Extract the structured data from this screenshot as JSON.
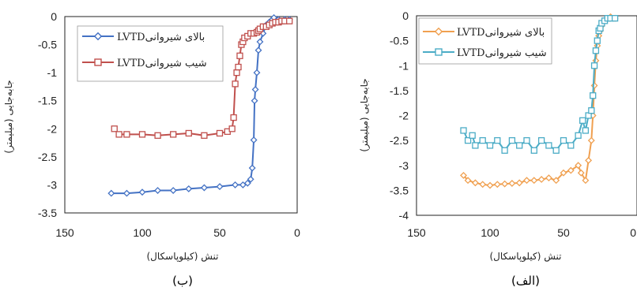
{
  "chart_data": [
    {
      "type": "line",
      "caption": "(ب)",
      "xlabel": "تنش (کیلوپاسکال)",
      "ylabel": "جابه‌جایی (میلیمتر)",
      "xlim": [
        150,
        0
      ],
      "ylim": [
        -3.5,
        0
      ],
      "xticks": [
        "150",
        "100",
        "50",
        "0"
      ],
      "yticks": [
        "0",
        "-0.5",
        "-1",
        "-1.5",
        "-2",
        "-2.5",
        "-3",
        "-3.5"
      ],
      "legend_position": "top-left",
      "series": [
        {
          "name": "LVTDبالای شیروانی",
          "color": "#4472c4",
          "marker": "diamond",
          "x": [
            120,
            110,
            100,
            90,
            80,
            70,
            60,
            50,
            40,
            35,
            32,
            30,
            29,
            28,
            27.5,
            27,
            26,
            25,
            24,
            22,
            20,
            18,
            16,
            15,
            12,
            10,
            8,
            5
          ],
          "y": [
            -3.15,
            -3.15,
            -3.13,
            -3.1,
            -3.1,
            -3.07,
            -3.05,
            -3.03,
            -3.0,
            -3.0,
            -2.97,
            -2.9,
            -2.7,
            -2.2,
            -1.5,
            -1.3,
            -1.0,
            -0.6,
            -0.45,
            -0.3,
            -0.15,
            -0.1,
            -0.05,
            -0.02,
            -0.05,
            -0.08,
            -0.05,
            -0.05
          ]
        },
        {
          "name": "LVTDشیب شیروانی",
          "color": "#c0504d",
          "marker": "square",
          "x": [
            118,
            115,
            110,
            100,
            90,
            80,
            70,
            60,
            50,
            45,
            42,
            41,
            40,
            39,
            38,
            37,
            36,
            35,
            34,
            32,
            30,
            28,
            26,
            25,
            24,
            22,
            20,
            18,
            16,
            14,
            12,
            10,
            8,
            5
          ],
          "y": [
            -2.0,
            -2.1,
            -2.1,
            -2.1,
            -2.12,
            -2.1,
            -2.08,
            -2.12,
            -2.08,
            -2.05,
            -2.0,
            -1.8,
            -1.2,
            -1.0,
            -0.9,
            -0.7,
            -0.5,
            -0.45,
            -0.38,
            -0.35,
            -0.3,
            -0.3,
            -0.28,
            -0.25,
            -0.22,
            -0.18,
            -0.18,
            -0.15,
            -0.12,
            -0.1,
            -0.1,
            -0.08,
            -0.08,
            -0.08
          ]
        }
      ]
    },
    {
      "type": "line",
      "caption": "(الف)",
      "xlabel": "تنش (کیلوپاسکال)",
      "ylabel": "جابه‌جایی (میلیمتر)",
      "xlim": [
        150,
        0
      ],
      "ylim": [
        -4,
        0
      ],
      "xticks": [
        "150",
        "100",
        "50",
        "0"
      ],
      "yticks": [
        "0",
        "-0.5",
        "-1",
        "-1.5",
        "-2",
        "-2.5",
        "-3",
        "-3.5",
        "-4"
      ],
      "legend_position": "top-left",
      "series": [
        {
          "name": "LVTDبالای شیروانی",
          "color": "#f0a050",
          "marker": "diamond",
          "x": [
            118,
            115,
            110,
            105,
            100,
            95,
            90,
            85,
            80,
            75,
            70,
            65,
            60,
            55,
            50,
            45,
            40,
            38,
            35,
            33,
            31,
            30,
            29,
            28,
            27,
            26,
            25,
            24,
            22,
            20,
            18,
            15
          ],
          "y": [
            -3.2,
            -3.3,
            -3.35,
            -3.38,
            -3.4,
            -3.38,
            -3.37,
            -3.36,
            -3.35,
            -3.3,
            -3.3,
            -3.28,
            -3.25,
            -3.3,
            -3.15,
            -3.1,
            -3.0,
            -3.15,
            -3.3,
            -2.9,
            -2.5,
            -2.0,
            -1.4,
            -0.9,
            -0.6,
            -0.4,
            -0.3,
            -0.2,
            -0.1,
            -0.05,
            -0.02,
            -0.05
          ]
        },
        {
          "name": "LVTDشیب شیروانی",
          "color": "#4bacc6",
          "marker": "square",
          "x": [
            118,
            115,
            112,
            110,
            105,
            100,
            95,
            90,
            85,
            80,
            75,
            70,
            65,
            60,
            55,
            50,
            45,
            40,
            37,
            35,
            33,
            31,
            30,
            29,
            28,
            27,
            26,
            25,
            24,
            22,
            20,
            18,
            15
          ],
          "y": [
            -2.3,
            -2.5,
            -2.4,
            -2.6,
            -2.5,
            -2.6,
            -2.5,
            -2.7,
            -2.5,
            -2.6,
            -2.5,
            -2.7,
            -2.5,
            -2.6,
            -2.7,
            -2.5,
            -2.6,
            -2.4,
            -2.1,
            -2.3,
            -2.0,
            -1.9,
            -1.6,
            -1.0,
            -0.7,
            -0.5,
            -0.3,
            -0.25,
            -0.15,
            -0.1,
            -0.05,
            -0.05,
            -0.05
          ]
        }
      ]
    }
  ]
}
